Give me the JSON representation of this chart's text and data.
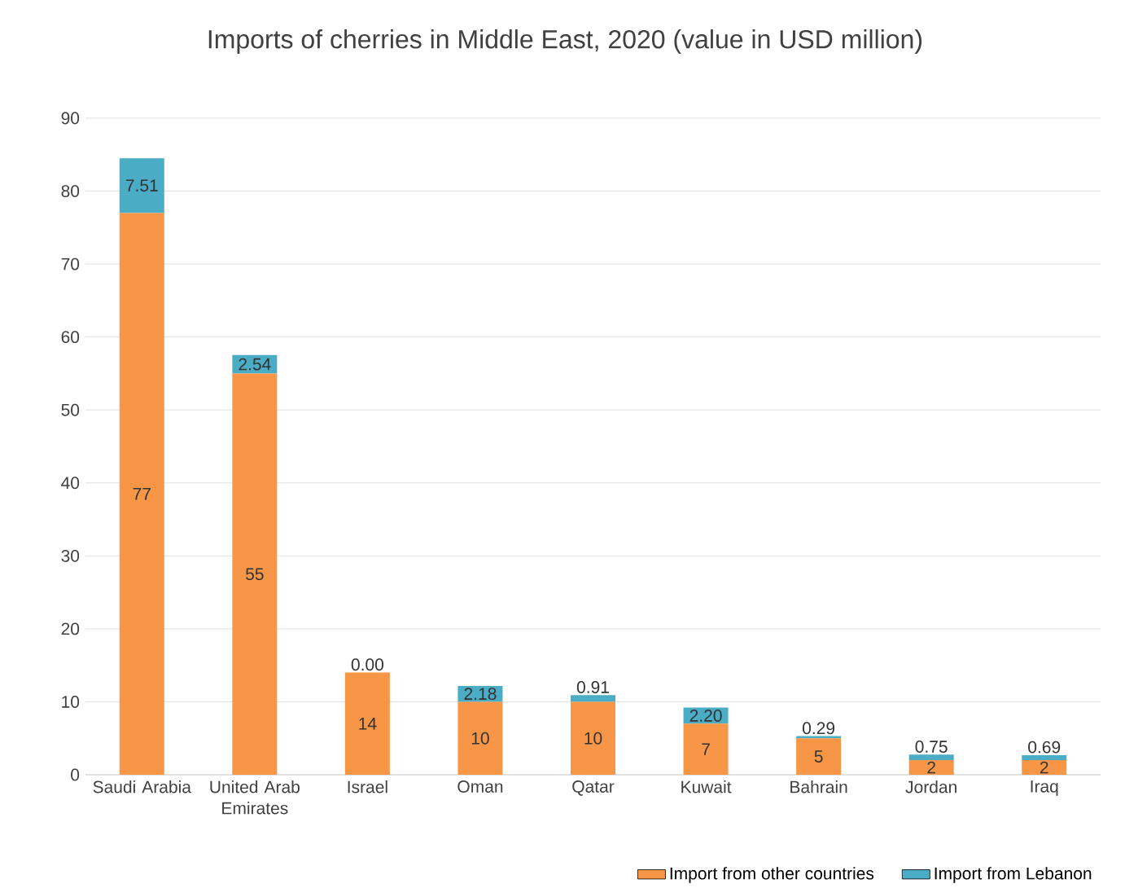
{
  "chart_data": {
    "type": "bar",
    "title": "Imports of cherries in Middle East, 2020 (value in USD million)",
    "categories": [
      "Saudi Arabia",
      "United Arab Emirates",
      "Israel",
      "Oman",
      "Qatar",
      "Kuwait",
      "Bahrain",
      "Jordan",
      "Iraq"
    ],
    "stacked": true,
    "series": [
      {
        "name": "Import from other countries",
        "color": "#f79646",
        "values": [
          77,
          55,
          14,
          10,
          10,
          7,
          5,
          2,
          2
        ],
        "value_labels": [
          "77",
          "55",
          "14",
          "10",
          "10",
          "7",
          "5",
          "2",
          "2"
        ]
      },
      {
        "name": "Import from Lebanon",
        "color": "#4bacc6",
        "values": [
          7.51,
          2.54,
          0.0,
          2.18,
          0.91,
          2.2,
          0.29,
          0.75,
          0.69
        ],
        "value_labels": [
          "7.51",
          "2.54",
          "0.00",
          "2.18",
          "0.91",
          "2.20",
          "0.29",
          "0.75",
          "0.69"
        ]
      }
    ],
    "ylim": [
      0,
      90
    ],
    "yticks": [
      0,
      10,
      20,
      30,
      40,
      50,
      60,
      70,
      80,
      90
    ],
    "grid": "y",
    "legend": "bottom"
  }
}
